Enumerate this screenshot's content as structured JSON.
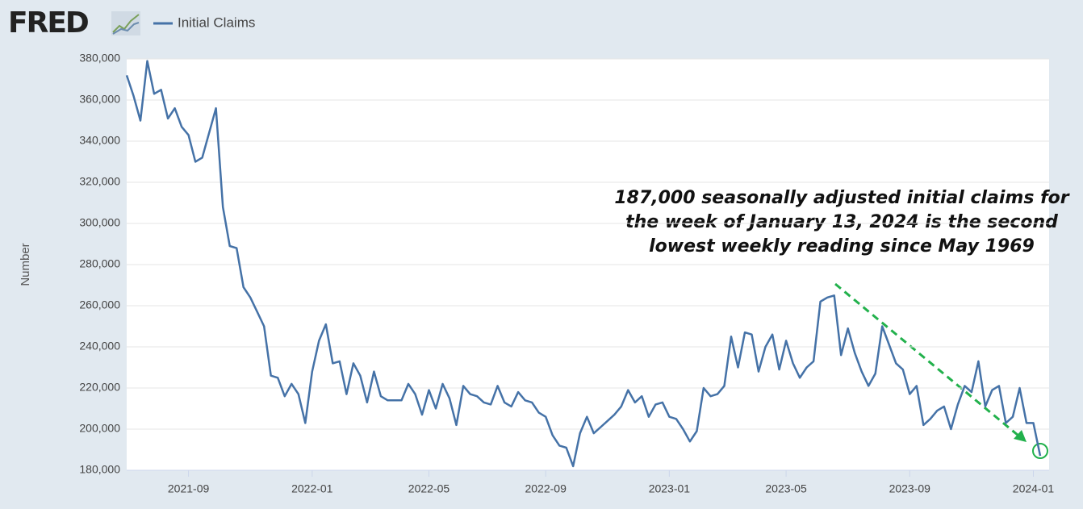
{
  "chart_data": {
    "type": "line",
    "logo": "FRED",
    "ylabel": "Number",
    "annotation": [
      "187,000 seasonally adjusted initial claims for",
      "the week of January 13, 2024 is the second",
      "lowest weekly reading since May 1969"
    ],
    "categories": [
      null,
      null,
      null,
      null,
      null,
      null,
      null,
      null,
      null,
      "2021-09",
      null,
      null,
      null,
      null,
      null,
      null,
      null,
      null,
      null,
      null,
      null,
      null,
      null,
      null,
      null,
      null,
      null,
      "2022-01",
      null,
      null,
      null,
      null,
      null,
      null,
      null,
      null,
      null,
      null,
      null,
      null,
      null,
      null,
      null,
      null,
      "2022-05",
      null,
      null,
      null,
      null,
      null,
      null,
      null,
      null,
      null,
      null,
      null,
      null,
      null,
      null,
      null,
      null,
      "2022-09",
      null,
      null,
      null,
      null,
      null,
      null,
      null,
      null,
      null,
      null,
      null,
      null,
      null,
      null,
      null,
      null,
      null,
      "2023-01",
      null,
      null,
      null,
      null,
      null,
      null,
      null,
      null,
      null,
      null,
      null,
      null,
      null,
      null,
      null,
      null,
      "2023-05",
      null,
      null,
      null,
      null,
      null,
      null,
      null,
      null,
      null,
      null,
      null,
      null,
      null,
      null,
      null,
      null,
      null,
      "2023-09",
      null,
      null,
      null,
      null,
      null,
      null,
      null,
      null,
      null,
      null,
      null,
      null,
      null,
      null,
      null,
      null,
      null,
      "2024-01",
      null
    ],
    "series": [
      {
        "name": "Initial Claims",
        "color": "#4572a7",
        "values": [
          372000,
          362000,
          350000,
          379000,
          363000,
          365000,
          351000,
          356000,
          347000,
          343000,
          330000,
          332000,
          344000,
          356000,
          308000,
          289000,
          288000,
          269000,
          264000,
          257000,
          250000,
          226000,
          225000,
          216000,
          222000,
          217000,
          203000,
          228000,
          243000,
          251000,
          232000,
          233000,
          217000,
          232000,
          226000,
          213000,
          228000,
          216000,
          214000,
          214000,
          214000,
          222000,
          217000,
          207000,
          219000,
          210000,
          222000,
          215000,
          202000,
          221000,
          217000,
          216000,
          213000,
          212000,
          221000,
          213000,
          211000,
          218000,
          214000,
          213000,
          208000,
          206000,
          197000,
          192000,
          191000,
          182000,
          198000,
          206000,
          198000,
          201000,
          204000,
          207000,
          211000,
          219000,
          213000,
          216000,
          206000,
          212000,
          213000,
          206000,
          205000,
          200000,
          194000,
          199000,
          220000,
          216000,
          217000,
          221000,
          245000,
          230000,
          247000,
          246000,
          228000,
          240000,
          246000,
          229000,
          243000,
          232000,
          225000,
          230000,
          233000,
          262000,
          264000,
          265000,
          236000,
          249000,
          237000,
          228000,
          221000,
          227000,
          250000,
          241000,
          232000,
          229000,
          217000,
          221000,
          202000,
          205000,
          209000,
          211000,
          200000,
          212000,
          221000,
          218000,
          233000,
          211000,
          219000,
          221000,
          203000,
          206000,
          220000,
          203000,
          203000,
          187000
        ]
      }
    ],
    "ylim": [
      180000,
      380000
    ],
    "yticks": [
      {
        "value": 180000,
        "label": "180,000"
      },
      {
        "value": 200000,
        "label": "200,000"
      },
      {
        "value": 220000,
        "label": "220,000"
      },
      {
        "value": 240000,
        "label": "240,000"
      },
      {
        "value": 260000,
        "label": "260,000"
      },
      {
        "value": 280000,
        "label": "280,000"
      },
      {
        "value": 300000,
        "label": "300,000"
      },
      {
        "value": 320000,
        "label": "320,000"
      },
      {
        "value": 340000,
        "label": "340,000"
      },
      {
        "value": 360000,
        "label": "360,000"
      },
      {
        "value": 380000,
        "label": "380,000"
      }
    ],
    "grid": true
  }
}
